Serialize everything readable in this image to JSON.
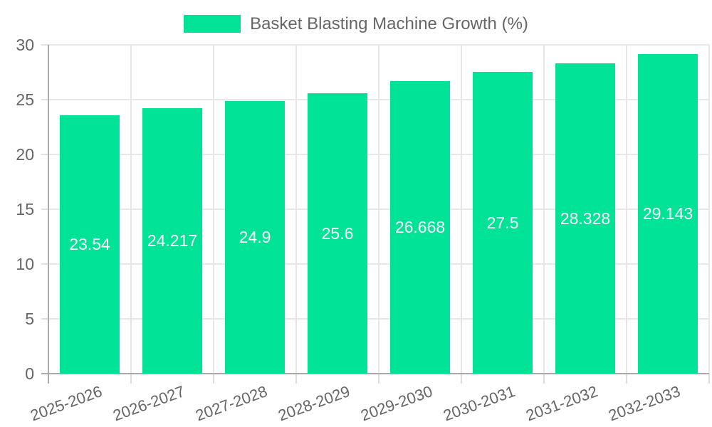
{
  "legend": {
    "label": "Basket Blasting Machine Growth (%)",
    "swatch_color": "#00e396"
  },
  "chart_data": {
    "type": "bar",
    "title": "",
    "xlabel": "",
    "ylabel": "",
    "categories": [
      "2025-2026",
      "2026-2027",
      "2027-2028",
      "2028-2029",
      "2029-2030",
      "2030-2031",
      "2031-2032",
      "2032-2033"
    ],
    "series": [
      {
        "name": "Basket Blasting Machine Growth (%)",
        "values": [
          23.54,
          24.217,
          24.9,
          25.6,
          26.668,
          27.5,
          28.328,
          29.143
        ],
        "color": "#00e396"
      }
    ],
    "data_labels": [
      "23.54",
      "24.217",
      "24.9",
      "25.6",
      "26.668",
      "27.5",
      "28.328",
      "29.143"
    ],
    "data_label_color": "#ffffff",
    "ylim": [
      0,
      30
    ],
    "yticks": [
      0,
      5,
      10,
      15,
      20,
      25,
      30
    ],
    "grid": true,
    "legend_position": "top",
    "x_label_rotation_deg": -20,
    "axis_text_color": "#666666",
    "gridline_color": "#e7e7e7",
    "axis_line_color": "#ababab",
    "background_color": "#ffffff"
  }
}
